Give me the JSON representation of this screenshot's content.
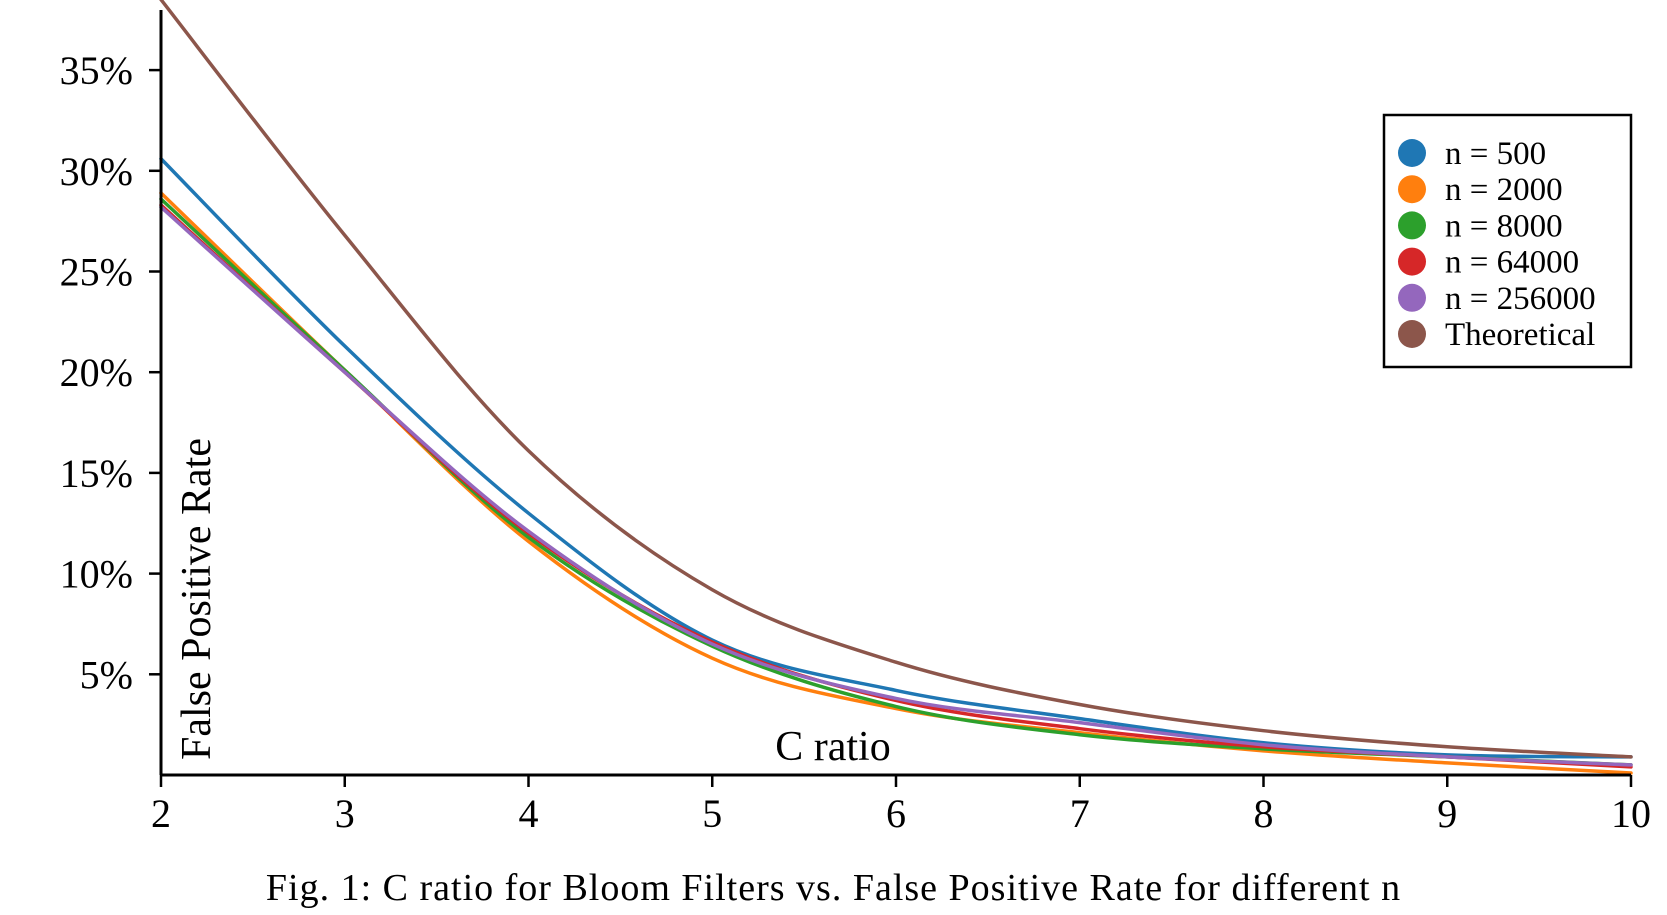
{
  "caption": "Fig. 1: C ratio for Bloom Filters vs. False Positive Rate for different n",
  "chart_data": {
    "type": "line",
    "title": "",
    "xlabel": "C ratio",
    "ylabel": "False Positive Rate",
    "xlim": [
      2,
      10
    ],
    "ylim": [
      0,
      38.5
    ],
    "x_ticks": [
      2,
      3,
      4,
      5,
      6,
      7,
      8,
      9,
      10
    ],
    "x_tick_labels": [
      "2",
      "3",
      "4",
      "5",
      "6",
      "7",
      "8",
      "9",
      "10"
    ],
    "y_ticks": [
      5,
      10,
      15,
      20,
      25,
      30,
      35
    ],
    "y_tick_labels": [
      "5%",
      "10%",
      "15%",
      "20%",
      "25%",
      "30%",
      "35%"
    ],
    "grid": false,
    "legend_position": "top-right",
    "x": [
      2,
      3,
      4,
      5,
      6,
      7,
      8,
      9,
      10
    ],
    "series": [
      {
        "name": "n = 500",
        "color": "#1f77b4",
        "values": [
          30.6,
          21.3,
          13.0,
          6.7,
          4.2,
          2.8,
          1.6,
          1.0,
          0.9
        ]
      },
      {
        "name": "n = 2000",
        "color": "#ff7f0e",
        "values": [
          28.9,
          20.1,
          11.6,
          5.8,
          3.3,
          2.1,
          1.2,
          0.6,
          0.1
        ]
      },
      {
        "name": "n = 8000",
        "color": "#2ca02c",
        "values": [
          28.6,
          20.1,
          11.8,
          6.4,
          3.4,
          2.0,
          1.3,
          0.9,
          0.5
        ]
      },
      {
        "name": "n = 64000",
        "color": "#d62728",
        "values": [
          28.3,
          20.0,
          12.0,
          6.6,
          3.7,
          2.3,
          1.4,
          0.9,
          0.4
        ]
      },
      {
        "name": "n = 256000",
        "color": "#9467bd",
        "values": [
          28.2,
          20.0,
          12.1,
          6.5,
          3.8,
          2.6,
          1.5,
          0.9,
          0.5
        ]
      },
      {
        "name": "Theoretical",
        "color": "#8c564b",
        "values": [
          38.5,
          26.8,
          16.1,
          9.2,
          5.6,
          3.5,
          2.2,
          1.4,
          0.9
        ]
      }
    ]
  }
}
